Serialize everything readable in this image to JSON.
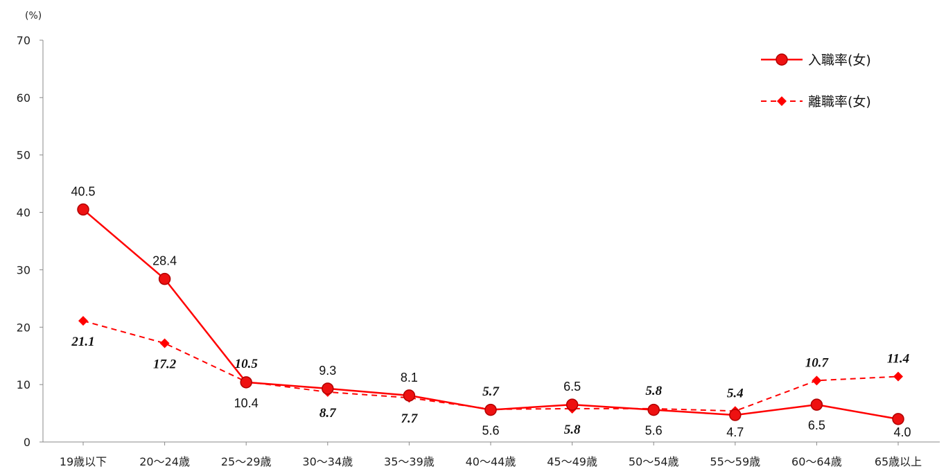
{
  "chart_data": {
    "type": "line",
    "y_unit": "(%)",
    "ylim": [
      0,
      70
    ],
    "yticks": [
      0,
      10,
      20,
      30,
      40,
      50,
      60,
      70
    ],
    "grid": false,
    "legend_position": "top-right",
    "categories": [
      "19歳以下",
      "20～24歳",
      "25～29歳",
      "30～34歳",
      "35～39歳",
      "40～44歳",
      "45～49歳",
      "50～54歳",
      "55～59歳",
      "60～64歳",
      "65歳以上"
    ],
    "series": [
      {
        "name": "入職率(女)",
        "values": [
          40.5,
          28.4,
          10.4,
          9.3,
          8.1,
          5.6,
          6.5,
          5.6,
          4.7,
          6.5,
          4.0
        ],
        "labels": [
          "40.5",
          "28.4",
          "10.4",
          "9.3",
          "8.1",
          "5.6",
          "6.5",
          "5.6",
          "4.7",
          "6.5",
          "4.0"
        ],
        "label_positions": [
          "above",
          "above",
          "below",
          "above",
          "above",
          "below",
          "above",
          "below",
          "below",
          "below",
          "below"
        ],
        "style": "solid",
        "marker": "circle",
        "color": "#ff0000"
      },
      {
        "name": "離職率(女)",
        "values": [
          21.1,
          17.2,
          10.5,
          8.7,
          7.7,
          5.7,
          5.8,
          5.8,
          5.4,
          10.7,
          11.4
        ],
        "labels": [
          "21.1",
          "17.2",
          "10.5",
          "8.7",
          "7.7",
          "5.7",
          "5.8",
          "5.8",
          "5.4",
          "10.7",
          "11.4"
        ],
        "label_positions": [
          "below",
          "below",
          "above",
          "below",
          "below",
          "above",
          "below",
          "above",
          "above",
          "above",
          "above"
        ],
        "style": "dashed",
        "marker": "diamond",
        "color": "#ff0000"
      }
    ]
  }
}
